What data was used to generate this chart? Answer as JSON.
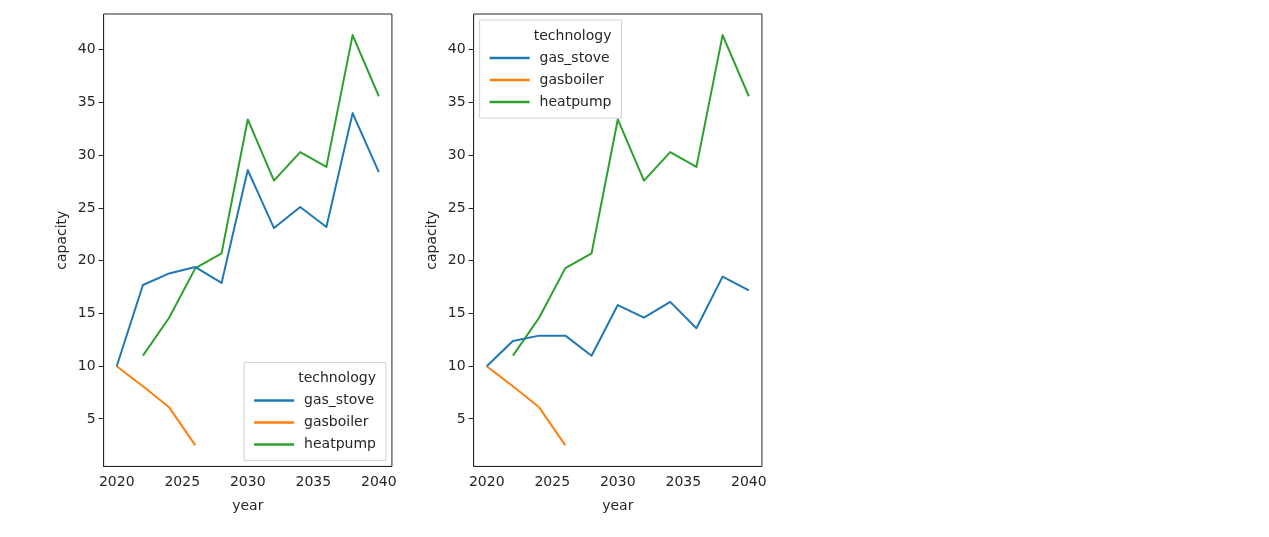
{
  "chart_data": [
    {
      "type": "line",
      "xlabel": "year",
      "ylabel": "capacity",
      "legend_title": "technology",
      "legend": "bottom right",
      "grid": false,
      "xlim": [
        2019,
        2041
      ],
      "xticks": [
        2020,
        2025,
        2030,
        2035,
        2040
      ],
      "ylim": [
        0.5,
        43.4
      ],
      "yticks": [
        5,
        10,
        15,
        20,
        25,
        30,
        35,
        40
      ],
      "x": [
        2020,
        2022,
        2024,
        2026,
        2028,
        2030,
        2032,
        2034,
        2036,
        2038,
        2040
      ],
      "series": [
        {
          "name": "gas_stove",
          "color": "#1f77b4",
          "values": [
            10,
            17.7,
            18.8,
            19.4,
            17.9,
            28.6,
            23.1,
            25.1,
            23.2,
            34.0,
            28.4
          ]
        },
        {
          "name": "gasboiler",
          "color": "#ff7f0e",
          "values": [
            10,
            8.1,
            6.1,
            2.5,
            null,
            null,
            null,
            null,
            null,
            null,
            null
          ]
        },
        {
          "name": "heatpump",
          "color": "#2ca02c",
          "values": [
            null,
            11.0,
            14.6,
            19.3,
            20.7,
            33.4,
            27.6,
            30.3,
            28.9,
            41.4,
            35.6
          ]
        }
      ]
    },
    {
      "type": "line",
      "xlabel": "year",
      "ylabel": "capacity",
      "legend_title": "technology",
      "legend": "top left",
      "grid": false,
      "xlim": [
        2019,
        2041
      ],
      "xticks": [
        2020,
        2025,
        2030,
        2035,
        2040
      ],
      "ylim": [
        0.5,
        43.4
      ],
      "yticks": [
        5,
        10,
        15,
        20,
        25,
        30,
        35,
        40
      ],
      "x": [
        2020,
        2022,
        2024,
        2026,
        2028,
        2030,
        2032,
        2034,
        2036,
        2038,
        2040
      ],
      "series": [
        {
          "name": "gas_stove",
          "color": "#1f77b4",
          "values": [
            10,
            12.4,
            12.9,
            12.9,
            11.0,
            15.8,
            14.6,
            16.1,
            13.6,
            18.5,
            17.2
          ]
        },
        {
          "name": "gasboiler",
          "color": "#ff7f0e",
          "values": [
            10,
            8.1,
            6.1,
            2.5,
            null,
            null,
            null,
            null,
            null,
            null,
            null
          ]
        },
        {
          "name": "heatpump",
          "color": "#2ca02c",
          "values": [
            null,
            11.0,
            14.6,
            19.3,
            20.7,
            33.4,
            27.6,
            30.3,
            28.9,
            41.4,
            35.6
          ]
        }
      ]
    }
  ]
}
